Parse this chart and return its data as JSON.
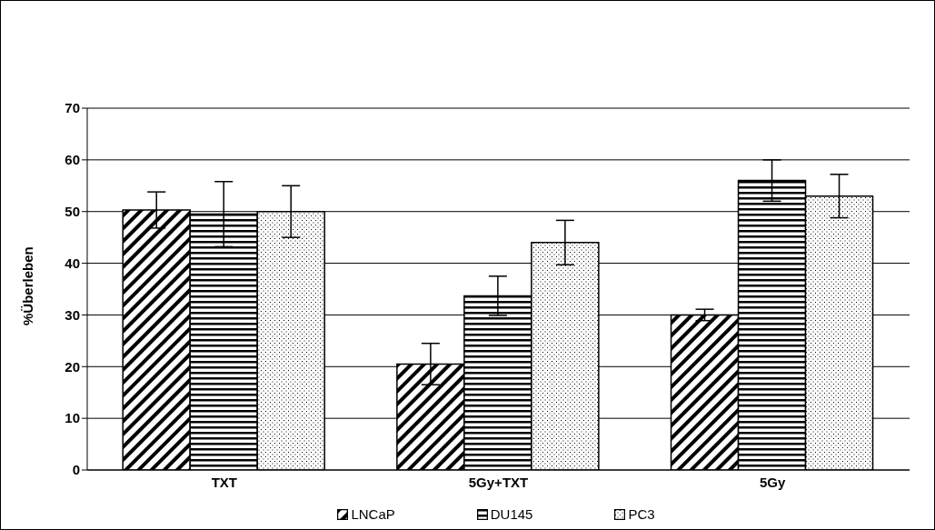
{
  "chart_data": {
    "type": "bar",
    "ylabel": "%Überleben",
    "categories": [
      "TXT",
      "5Gy+TXT",
      "5Gy"
    ],
    "series": [
      {
        "name": "LNCaP",
        "color": "#000000",
        "values": [
          50.3,
          20.5,
          30
        ],
        "errors": [
          3.5,
          4,
          1.1
        ]
      },
      {
        "name": "DU145",
        "color": "#000000",
        "values": [
          49.5,
          33.7,
          56
        ],
        "errors": [
          6.3,
          3.8,
          4
        ]
      },
      {
        "name": "PC3",
        "color": "#000000",
        "values": [
          50,
          44,
          53
        ],
        "errors": [
          5,
          4.3,
          4.2
        ]
      }
    ],
    "ylim": [
      0,
      70
    ],
    "yticks": [
      0,
      10,
      20,
      30,
      40,
      50,
      60,
      70
    ],
    "grid": "y",
    "legend": "bottom"
  }
}
